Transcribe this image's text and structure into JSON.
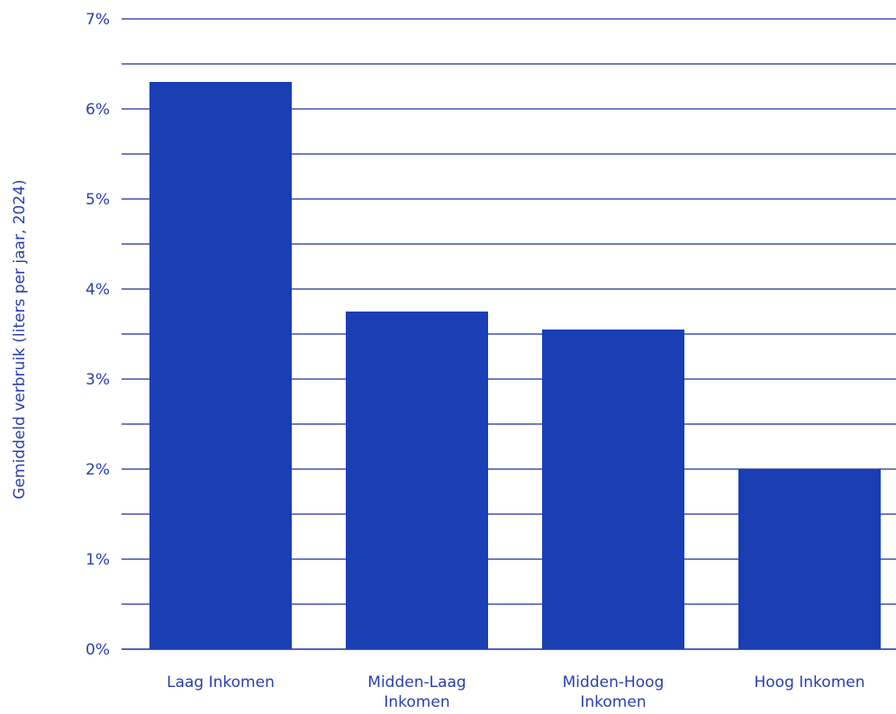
{
  "chart_data": {
    "type": "bar",
    "title": "",
    "xlabel": "",
    "ylabel": "Gemiddeld verbruik (liters per jaar, 2024)",
    "categories": [
      "Laag Inkomen",
      "Midden-Laag Inkomen",
      "Midden-Hoog Inkomen",
      "Hoog Inkomen"
    ],
    "category_lines": [
      [
        "Laag Inkomen"
      ],
      [
        "Midden-Laag",
        "Inkomen"
      ],
      [
        "Midden-Hoog",
        "Inkomen"
      ],
      [
        "Hoog Inkomen"
      ]
    ],
    "values": [
      6.3,
      3.75,
      3.55,
      2.0
    ],
    "ylim": [
      0,
      7
    ],
    "yticks": [
      0,
      1,
      2,
      3,
      4,
      5,
      6,
      7
    ],
    "ytick_labels": [
      "0%",
      "1%",
      "2%",
      "3%",
      "4%",
      "5%",
      "6%",
      "7%"
    ],
    "grid": true,
    "legend": "none",
    "colors": {
      "bar": "#1a3fb5",
      "grid": "#1a2f9e",
      "text": "#2b3fb0"
    }
  }
}
